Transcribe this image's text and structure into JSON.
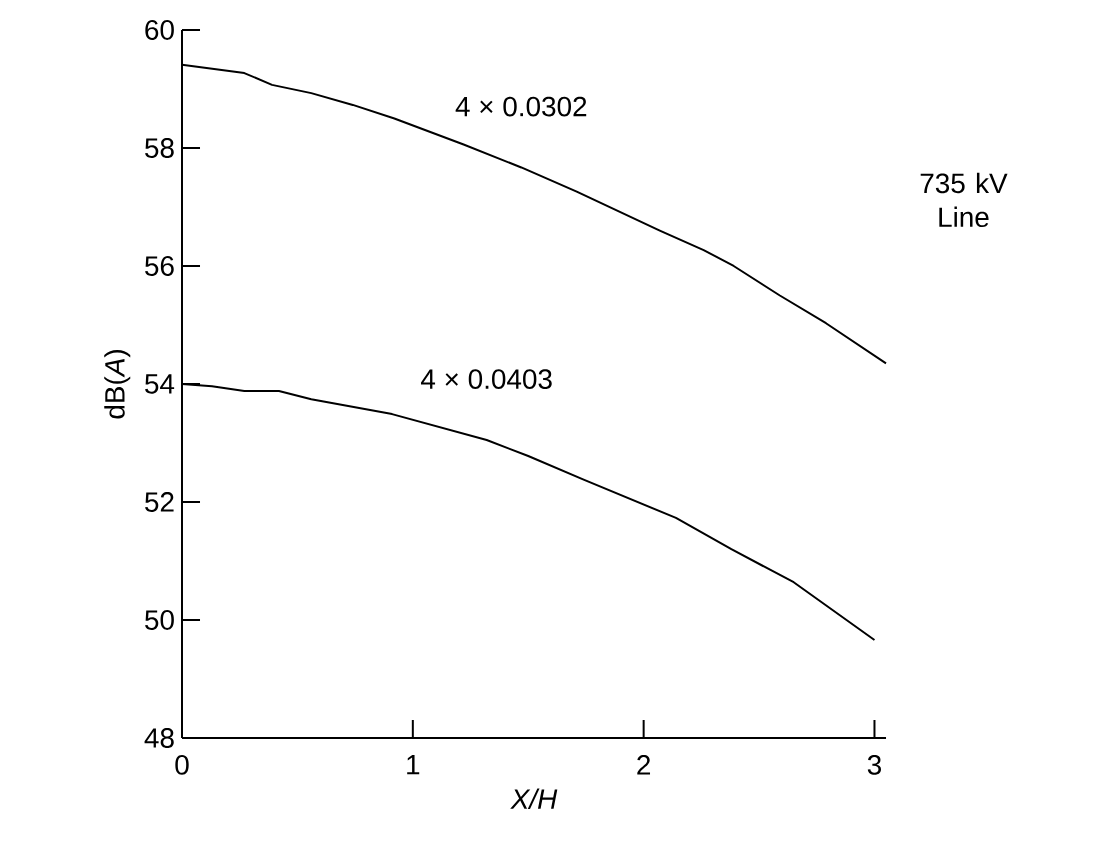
{
  "chart_data": {
    "type": "line",
    "xlabel": "X/H",
    "ylabel": "dB(*A*)",
    "annotations": [
      "735 kV Line"
    ],
    "xlim": [
      0,
      3.05
    ],
    "ylim": [
      48,
      60
    ],
    "xticks": [
      0,
      1,
      2,
      3
    ],
    "yticks": [
      48,
      50,
      52,
      54,
      56,
      58,
      60
    ],
    "marker": "none",
    "line_style": "solid",
    "series": [
      {
        "name": "4 × 0.0302",
        "color": "#000000",
        "x": [
          0,
          0.27,
          0.39,
          0.56,
          0.74,
          0.92,
          1.22,
          1.47,
          1.71,
          2.07,
          2.26,
          2.39,
          2.59,
          2.79,
          3.05
        ],
        "values": [
          59.41,
          59.27,
          59.07,
          58.93,
          58.73,
          58.5,
          58.06,
          57.67,
          57.26,
          56.6,
          56.27,
          56.0,
          55.5,
          55.03,
          54.35
        ]
      },
      {
        "name": "4 × 0.0403",
        "color": "#000000",
        "x": [
          0,
          0.13,
          0.27,
          0.42,
          0.56,
          0.91,
          1.32,
          1.5,
          1.74,
          2.14,
          2.38,
          2.65,
          3.0
        ],
        "values": [
          54.0,
          53.96,
          53.88,
          53.88,
          53.74,
          53.49,
          53.05,
          52.78,
          52.38,
          51.73,
          51.2,
          50.64,
          49.66
        ]
      }
    ]
  }
}
